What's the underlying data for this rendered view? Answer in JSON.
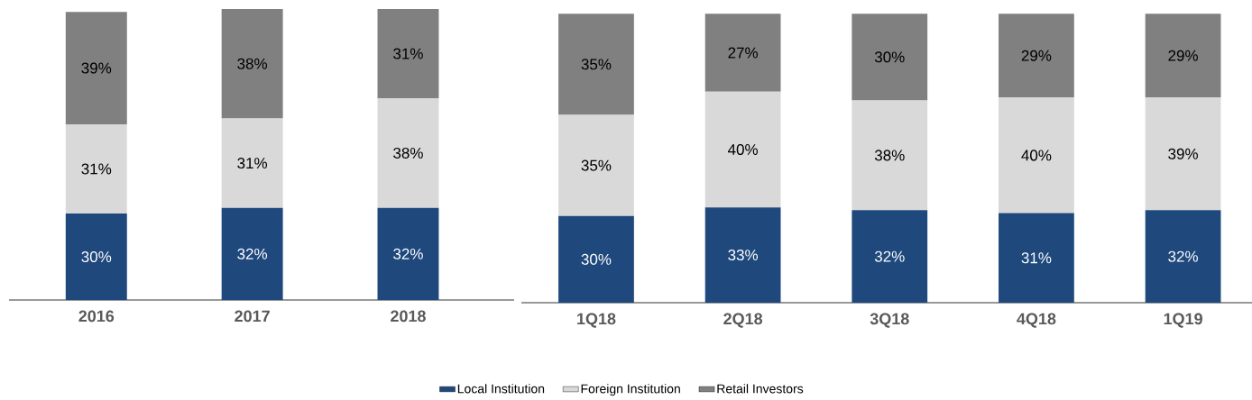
{
  "chart_data": [
    {
      "type": "bar",
      "stacked": true,
      "categories": [
        "2016",
        "2017",
        "2018"
      ],
      "ylim": [
        0,
        101
      ],
      "tick_labels": "x",
      "legend": "bottom",
      "series": [
        {
          "name": "Local Institution",
          "color": "#1f497d",
          "values": [
            30,
            32,
            32
          ],
          "value_labels": [
            "30%",
            "32%",
            "32%"
          ]
        },
        {
          "name": "Foreign Institution",
          "color": "#d9d9d9",
          "values": [
            31,
            31,
            38
          ],
          "value_labels": [
            "31%",
            "31%",
            "38%"
          ]
        },
        {
          "name": "Retail Investors",
          "color": "#808080",
          "values": [
            39,
            38,
            31
          ],
          "value_labels": [
            "39%",
            "38%",
            "31%"
          ]
        }
      ]
    },
    {
      "type": "bar",
      "stacked": true,
      "categories": [
        "1Q18",
        "2Q18",
        "3Q18",
        "4Q18",
        "1Q19"
      ],
      "ylim": [
        0,
        101
      ],
      "tick_labels": "x",
      "series": [
        {
          "color": "#1f497d",
          "values": [
            30,
            33,
            32,
            31,
            32
          ],
          "value_labels": [
            "30%",
            "33%",
            "32%",
            "31%",
            "32%"
          ]
        },
        {
          "color": "#d9d9d9",
          "values": [
            35,
            40,
            38,
            40,
            39
          ],
          "value_labels": [
            "35%",
            "40%",
            "38%",
            "40%",
            "39%"
          ]
        },
        {
          "color": "#808080",
          "values": [
            35,
            27,
            30,
            29,
            29
          ],
          "value_labels": [
            "35%",
            "27%",
            "30%",
            "29%",
            "29%"
          ]
        }
      ]
    }
  ]
}
